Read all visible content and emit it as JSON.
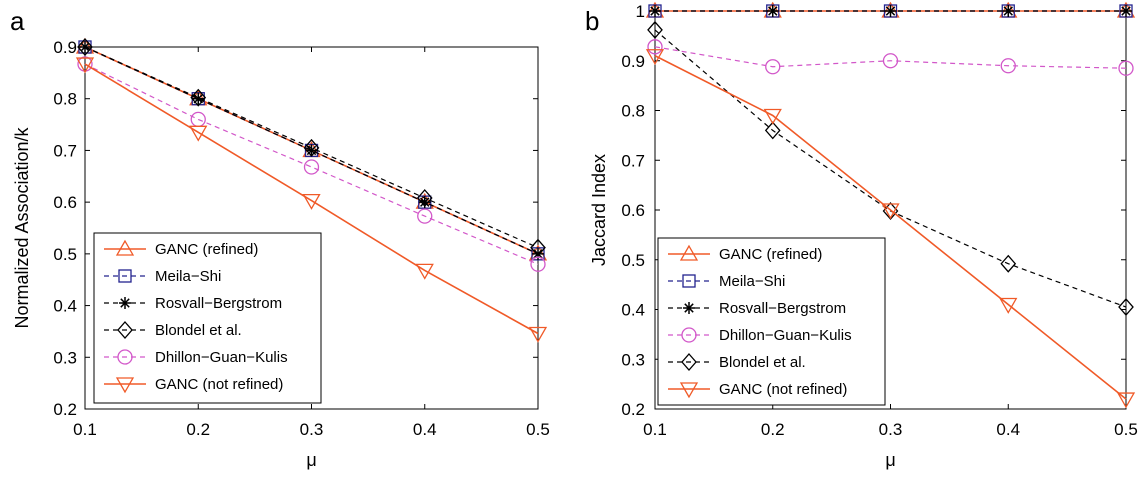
{
  "colors": {
    "ganc": "#f05a28",
    "meila_shi": "#23238e",
    "rosvall": "#000000",
    "blondel": "#000000",
    "dhillon": "#d257c9"
  },
  "chart_data": [
    {
      "type": "line",
      "panel_label": "a",
      "xlabel": "μ",
      "ylabel": "Normalized Association/k",
      "x": [
        0.1,
        0.2,
        0.3,
        0.4,
        0.5
      ],
      "x_tick_labels": [
        "0.1",
        "0.2",
        "0.3",
        "0.4",
        "0.5"
      ],
      "xlim": [
        0.1,
        0.5
      ],
      "ylim": [
        0.2,
        0.9
      ],
      "y_ticks": [
        0.2,
        0.3,
        0.4,
        0.5,
        0.6,
        0.7,
        0.8,
        0.9
      ],
      "y_tick_labels": [
        "0.2",
        "0.3",
        "0.4",
        "0.5",
        "0.6",
        "0.7",
        "0.8",
        "0.9"
      ],
      "legend_position": "lower-left",
      "series": [
        {
          "name": "GANC (refined)",
          "values": [
            0.9,
            0.8,
            0.7,
            0.6,
            0.5
          ],
          "color": "#f05a28",
          "marker": "triangle-up",
          "dash": "solid"
        },
        {
          "name": "Meila−Shi",
          "values": [
            0.9,
            0.8,
            0.7,
            0.6,
            0.5
          ],
          "color": "#23238e",
          "marker": "square",
          "dash": "dashed"
        },
        {
          "name": "Rosvall−Bergstrom",
          "values": [
            0.9,
            0.8,
            0.7,
            0.6,
            0.5
          ],
          "color": "#000000",
          "marker": "asterisk",
          "dash": "dashed"
        },
        {
          "name": "Blondel et al.",
          "values": [
            0.9,
            0.802,
            0.705,
            0.608,
            0.512
          ],
          "color": "#000000",
          "marker": "diamond",
          "dash": "dashed"
        },
        {
          "name": "Dhillon−Guan−Kulis",
          "values": [
            0.867,
            0.76,
            0.668,
            0.573,
            0.48
          ],
          "color": "#d257c9",
          "marker": "circle",
          "dash": "dashed"
        },
        {
          "name": "GANC (not refined)",
          "values": [
            0.867,
            0.735,
            0.603,
            0.468,
            0.346
          ],
          "color": "#f05a28",
          "marker": "triangle-down",
          "dash": "solid"
        }
      ]
    },
    {
      "type": "line",
      "panel_label": "b",
      "xlabel": "μ",
      "ylabel": "Jaccard Index",
      "x": [
        0.1,
        0.2,
        0.3,
        0.4,
        0.5
      ],
      "x_tick_labels": [
        "0.1",
        "0.2",
        "0.3",
        "0.4",
        "0.5"
      ],
      "xlim": [
        0.1,
        0.5
      ],
      "ylim": [
        0.2,
        1.0
      ],
      "y_ticks": [
        0.2,
        0.3,
        0.4,
        0.5,
        0.6,
        0.7,
        0.8,
        0.9,
        1.0
      ],
      "y_tick_labels": [
        "0.2",
        "0.3",
        "0.4",
        "0.5",
        "0.6",
        "0.7",
        "0.8",
        "0.9",
        "1"
      ],
      "legend_position": "lower-left",
      "series": [
        {
          "name": "GANC (refined)",
          "values": [
            1.0,
            1.0,
            1.0,
            1.0,
            1.0
          ],
          "color": "#f05a28",
          "marker": "triangle-up",
          "dash": "solid"
        },
        {
          "name": "Meila−Shi",
          "values": [
            1.0,
            1.0,
            1.0,
            1.0,
            1.0
          ],
          "color": "#23238e",
          "marker": "square",
          "dash": "dashed"
        },
        {
          "name": "Rosvall−Bergstrom",
          "values": [
            1.0,
            1.0,
            1.0,
            1.0,
            1.0
          ],
          "color": "#000000",
          "marker": "asterisk",
          "dash": "dashed"
        },
        {
          "name": "Dhillon−Guan−Kulis",
          "values": [
            0.928,
            0.888,
            0.9,
            0.89,
            0.885
          ],
          "color": "#d257c9",
          "marker": "circle",
          "dash": "dashed"
        },
        {
          "name": "Blondel et al.",
          "values": [
            0.962,
            0.76,
            0.598,
            0.492,
            0.405
          ],
          "color": "#000000",
          "marker": "diamond",
          "dash": "dashed"
        },
        {
          "name": "GANC (not refined)",
          "values": [
            0.91,
            0.79,
            0.6,
            0.41,
            0.22
          ],
          "color": "#f05a28",
          "marker": "triangle-down",
          "dash": "solid"
        }
      ]
    }
  ]
}
